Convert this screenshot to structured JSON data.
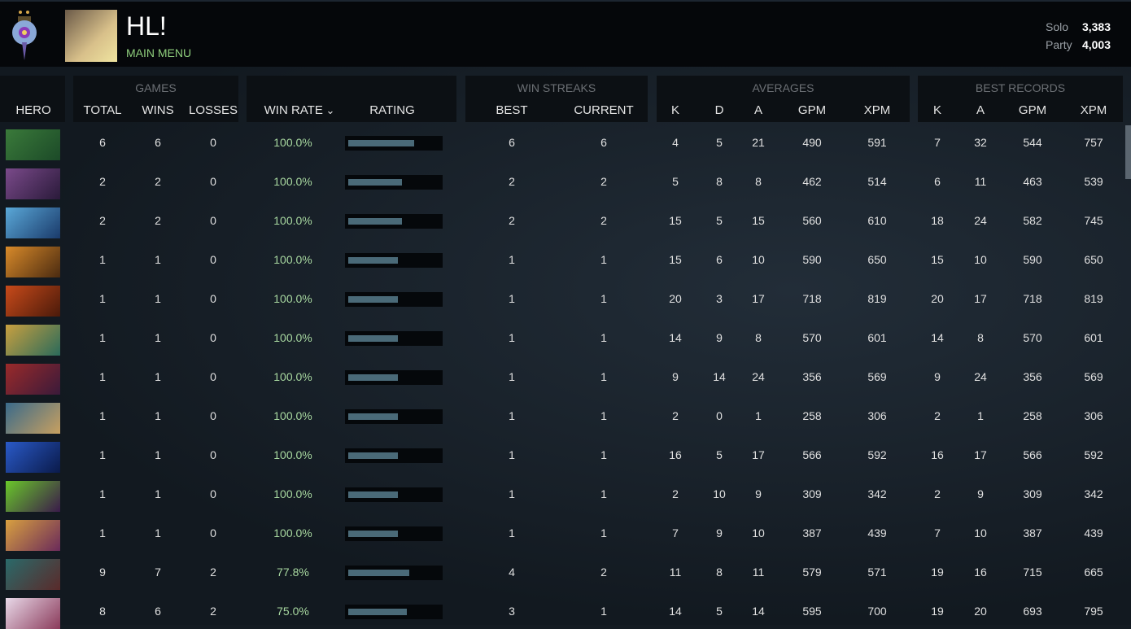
{
  "header": {
    "player_name": "HL!",
    "main_menu": "MAIN MENU",
    "mmr": [
      {
        "label": "Solo",
        "value": "3,383"
      },
      {
        "label": "Party",
        "value": "4,003"
      }
    ]
  },
  "groups": {
    "games": "GAMES",
    "streaks": "WIN STREAKS",
    "averages": "AVERAGES",
    "best": "BEST RECORDS"
  },
  "columns": {
    "hero": "HERO",
    "total": "TOTAL",
    "wins": "WINS",
    "losses": "LOSSES",
    "winrate": "WIN RATE",
    "rating": "RATING",
    "best": "BEST",
    "current": "CURRENT",
    "k": "K",
    "d": "D",
    "a": "A",
    "gpm": "GPM",
    "xpm": "XPM",
    "bk": "K",
    "ba": "A",
    "bgpm": "GPM",
    "bxpm": "XPM"
  },
  "sort_icon": "chevron-down-icon",
  "rows": [
    {
      "c": [
        "#3a7a3a",
        "#1c4a28"
      ],
      "total": "6",
      "wins": "6",
      "losses": "0",
      "winrate": "100.0%",
      "rating": 0.7,
      "best": "6",
      "current": "6",
      "k": "4",
      "d": "5",
      "a": "21",
      "gpm": "490",
      "xpm": "591",
      "bk": "7",
      "ba": "32",
      "bgpm": "544",
      "bxpm": "757"
    },
    {
      "c": [
        "#7a4a8a",
        "#2a1a3a"
      ],
      "total": "2",
      "wins": "2",
      "losses": "0",
      "winrate": "100.0%",
      "rating": 0.57,
      "best": "2",
      "current": "2",
      "k": "5",
      "d": "8",
      "a": "8",
      "gpm": "462",
      "xpm": "514",
      "bk": "6",
      "ba": "11",
      "bgpm": "463",
      "bxpm": "539"
    },
    {
      "c": [
        "#5aa8d8",
        "#1a3a6a"
      ],
      "total": "2",
      "wins": "2",
      "losses": "0",
      "winrate": "100.0%",
      "rating": 0.57,
      "best": "2",
      "current": "2",
      "k": "15",
      "d": "5",
      "a": "15",
      "gpm": "560",
      "xpm": "610",
      "bk": "18",
      "ba": "24",
      "bgpm": "582",
      "bxpm": "745"
    },
    {
      "c": [
        "#d88a2a",
        "#4a2a10"
      ],
      "total": "1",
      "wins": "1",
      "losses": "0",
      "winrate": "100.0%",
      "rating": 0.53,
      "best": "1",
      "current": "1",
      "k": "15",
      "d": "6",
      "a": "10",
      "gpm": "590",
      "xpm": "650",
      "bk": "15",
      "ba": "10",
      "bgpm": "590",
      "bxpm": "650"
    },
    {
      "c": [
        "#c84a1a",
        "#4a1a0a"
      ],
      "total": "1",
      "wins": "1",
      "losses": "0",
      "winrate": "100.0%",
      "rating": 0.53,
      "best": "1",
      "current": "1",
      "k": "20",
      "d": "3",
      "a": "17",
      "gpm": "718",
      "xpm": "819",
      "bk": "20",
      "ba": "17",
      "bgpm": "718",
      "bxpm": "819"
    },
    {
      "c": [
        "#c8a040",
        "#2a6a5a"
      ],
      "total": "1",
      "wins": "1",
      "losses": "0",
      "winrate": "100.0%",
      "rating": 0.53,
      "best": "1",
      "current": "1",
      "k": "14",
      "d": "9",
      "a": "8",
      "gpm": "570",
      "xpm": "601",
      "bk": "14",
      "ba": "8",
      "bgpm": "570",
      "bxpm": "601"
    },
    {
      "c": [
        "#9a2a2a",
        "#3a1a3a"
      ],
      "total": "1",
      "wins": "1",
      "losses": "0",
      "winrate": "100.0%",
      "rating": 0.53,
      "best": "1",
      "current": "1",
      "k": "9",
      "d": "14",
      "a": "24",
      "gpm": "356",
      "xpm": "569",
      "bk": "9",
      "ba": "24",
      "bgpm": "356",
      "bxpm": "569"
    },
    {
      "c": [
        "#3a6a8a",
        "#c8a060"
      ],
      "total": "1",
      "wins": "1",
      "losses": "0",
      "winrate": "100.0%",
      "rating": 0.53,
      "best": "1",
      "current": "1",
      "k": "2",
      "d": "0",
      "a": "1",
      "gpm": "258",
      "xpm": "306",
      "bk": "2",
      "ba": "1",
      "bgpm": "258",
      "bxpm": "306"
    },
    {
      "c": [
        "#2a5ac8",
        "#0a1a4a"
      ],
      "total": "1",
      "wins": "1",
      "losses": "0",
      "winrate": "100.0%",
      "rating": 0.53,
      "best": "1",
      "current": "1",
      "k": "16",
      "d": "5",
      "a": "17",
      "gpm": "566",
      "xpm": "592",
      "bk": "16",
      "ba": "17",
      "bgpm": "566",
      "bxpm": "592"
    },
    {
      "c": [
        "#6ac82a",
        "#3a1a4a"
      ],
      "total": "1",
      "wins": "1",
      "losses": "0",
      "winrate": "100.0%",
      "rating": 0.53,
      "best": "1",
      "current": "1",
      "k": "2",
      "d": "10",
      "a": "9",
      "gpm": "309",
      "xpm": "342",
      "bk": "2",
      "ba": "9",
      "bgpm": "309",
      "bxpm": "342"
    },
    {
      "c": [
        "#d8a040",
        "#6a2a5a"
      ],
      "total": "1",
      "wins": "1",
      "losses": "0",
      "winrate": "100.0%",
      "rating": 0.53,
      "best": "1",
      "current": "1",
      "k": "7",
      "d": "9",
      "a": "10",
      "gpm": "387",
      "xpm": "439",
      "bk": "7",
      "ba": "10",
      "bgpm": "387",
      "bxpm": "439"
    },
    {
      "c": [
        "#2a6a6a",
        "#5a2a2a"
      ],
      "total": "9",
      "wins": "7",
      "losses": "2",
      "winrate": "77.8%",
      "rating": 0.65,
      "best": "4",
      "current": "2",
      "k": "11",
      "d": "8",
      "a": "11",
      "gpm": "579",
      "xpm": "571",
      "bk": "19",
      "ba": "16",
      "bgpm": "715",
      "bxpm": "665"
    },
    {
      "c": [
        "#e8d8e8",
        "#8a3a5a"
      ],
      "total": "8",
      "wins": "6",
      "losses": "2",
      "winrate": "75.0%",
      "rating": 0.62,
      "best": "3",
      "current": "1",
      "k": "14",
      "d": "5",
      "a": "14",
      "gpm": "595",
      "xpm": "700",
      "bk": "19",
      "ba": "20",
      "bgpm": "693",
      "bxpm": "795"
    }
  ]
}
